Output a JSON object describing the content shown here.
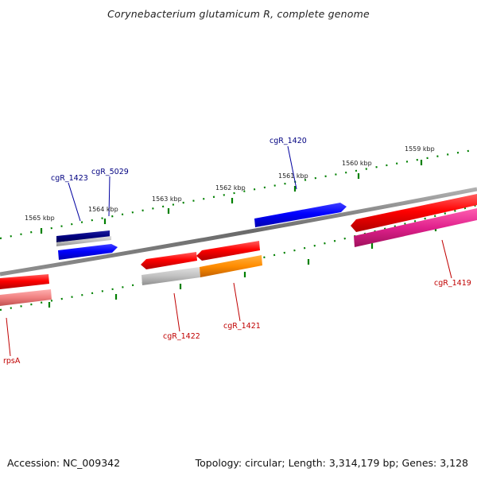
{
  "title": "Corynebacterium glutamicum R, complete genome",
  "footer": {
    "accession": "Accession: NC_009342",
    "summary": "Topology: circular; Length: 3,314,179 bp; Genes: 3,128"
  },
  "scale": {
    "ticks": [
      "1559 kbp",
      "1560 kbp",
      "1561 kbp",
      "1562 kbp",
      "1563 kbp",
      "1564 kbp",
      "1565 kbp"
    ]
  },
  "genes": {
    "forward": [
      {
        "label": "cgR_1423",
        "color": "#000080"
      },
      {
        "label": "cgR_5029",
        "color": "#0000ff"
      },
      {
        "label": "cgR_1420",
        "color": "#0000ff"
      }
    ],
    "reverse": [
      {
        "label": "cgR_1419",
        "color": "#ff0000"
      },
      {
        "label": "cgR_1421",
        "color": "#ff0000"
      },
      {
        "label": "cgR_1422",
        "color": "#ff0000"
      },
      {
        "label": "rpsA",
        "color": "#ff0000"
      }
    ]
  },
  "colors": {
    "backbone": "#808080",
    "ticks": "#008000",
    "forward_label": "#000080",
    "reverse_label": "#c00000",
    "orange": "#ff8c00",
    "magenta": "#e0208c",
    "pink": "#f08080",
    "grey": "#c0c0c0"
  }
}
